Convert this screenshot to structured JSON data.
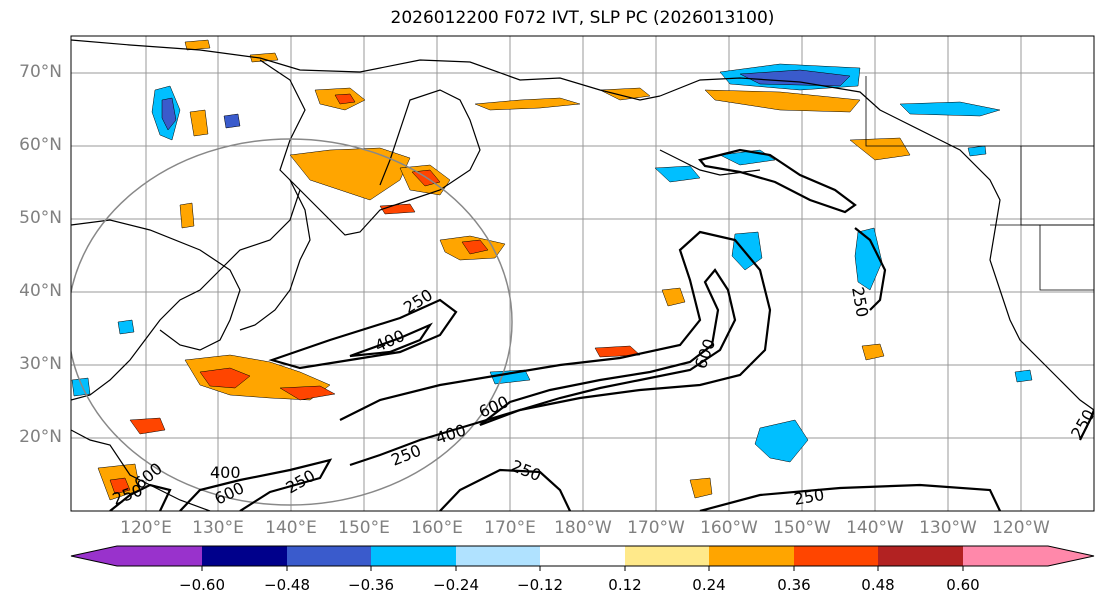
{
  "title": "2026012200 F072 IVT, SLP PC (2026013100)",
  "lat_labels": [
    "70°N",
    "60°N",
    "50°N",
    "40°N",
    "30°N",
    "20°N"
  ],
  "lon_labels": [
    "120°E",
    "130°E",
    "140°E",
    "150°E",
    "160°E",
    "170°E",
    "180°W",
    "170°W",
    "160°W",
    "150°W",
    "140°W",
    "130°W",
    "120°W"
  ],
  "contour_labels": [
    "250",
    "400",
    "600",
    "600",
    "400",
    "250",
    "250",
    "250",
    "600",
    "250",
    "250",
    "400",
    "600",
    "250",
    "250"
  ],
  "colorbar": {
    "ticks": [
      "−0.60",
      "−0.48",
      "−0.36",
      "−0.24",
      "−0.12",
      "0.12",
      "0.24",
      "0.36",
      "0.48",
      "0.60"
    ],
    "colors": [
      "#9932cc",
      "#00008b",
      "#3a5bcc",
      "#00bfff",
      "#b0e2ff",
      "#ffffff",
      "#ffe98a",
      "#ffa500",
      "#ff4500",
      "#b22222",
      "#ff88aa"
    ]
  }
}
